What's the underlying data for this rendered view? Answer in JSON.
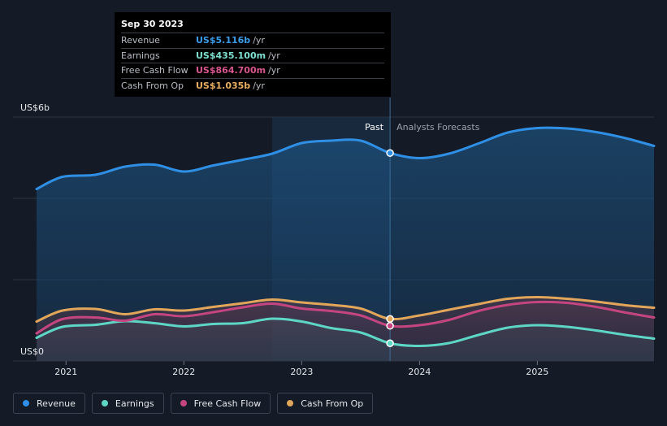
{
  "tooltip": {
    "date": "Sep 30 2023",
    "rows": [
      {
        "label": "Revenue",
        "value": "US$5.116b",
        "unit": "/yr",
        "color": "#3b9cea"
      },
      {
        "label": "Earnings",
        "value": "US$435.100m",
        "unit": "/yr",
        "color": "#7ee0d0"
      },
      {
        "label": "Free Cash Flow",
        "value": "US$864.700m",
        "unit": "/yr",
        "color": "#d9558e"
      },
      {
        "label": "Cash From Op",
        "value": "US$1.035b",
        "unit": "/yr",
        "color": "#eaae61"
      }
    ]
  },
  "legend": [
    {
      "label": "Revenue",
      "color": "#2f8fe5"
    },
    {
      "label": "Earnings",
      "color": "#5ed6c6"
    },
    {
      "label": "Free Cash Flow",
      "color": "#c4457f"
    },
    {
      "label": "Cash From Op",
      "color": "#e2a65a"
    }
  ],
  "chart_data": {
    "type": "line",
    "ylabel_top": "US$6b",
    "ylabel_bottom": "US$0",
    "ylim": [
      0,
      6
    ],
    "x_ticks": [
      "2021",
      "2022",
      "2023",
      "2024",
      "2025"
    ],
    "x_tick_values": [
      2021.0,
      2022.0,
      2023.0,
      2024.0,
      2025.0
    ],
    "xlim": [
      2020.55,
      2025.99
    ],
    "past_label": "Past",
    "forecast_label": "Analysts Forecasts",
    "divider_x": 2023.75,
    "highlight_start_x": 2022.75,
    "series": [
      {
        "name": "Revenue",
        "color": "#2f8fe5",
        "x": [
          2020.75,
          2020.97,
          2021.25,
          2021.5,
          2021.75,
          2022.0,
          2022.25,
          2022.5,
          2022.75,
          2023.0,
          2023.25,
          2023.5,
          2023.75,
          2024.0,
          2024.25,
          2024.5,
          2024.75,
          2025.0,
          2025.25,
          2025.5,
          2025.75,
          2025.99
        ],
        "values": [
          4.23,
          4.53,
          4.58,
          4.78,
          4.83,
          4.66,
          4.81,
          4.95,
          5.1,
          5.36,
          5.42,
          5.42,
          5.116,
          4.99,
          5.1,
          5.35,
          5.62,
          5.73,
          5.72,
          5.63,
          5.48,
          5.29
        ]
      },
      {
        "name": "Earnings",
        "color": "#5ed6c6",
        "x": [
          2020.75,
          2020.97,
          2021.25,
          2021.5,
          2021.75,
          2022.0,
          2022.25,
          2022.5,
          2022.75,
          2023.0,
          2023.25,
          2023.5,
          2023.75,
          2024.0,
          2024.25,
          2024.5,
          2024.75,
          2025.0,
          2025.25,
          2025.5,
          2025.75,
          2025.99
        ],
        "values": [
          0.57,
          0.84,
          0.89,
          0.98,
          0.93,
          0.85,
          0.91,
          0.93,
          1.04,
          0.97,
          0.81,
          0.7,
          0.4351,
          0.37,
          0.44,
          0.64,
          0.82,
          0.88,
          0.84,
          0.75,
          0.64,
          0.55
        ]
      },
      {
        "name": "Free Cash Flow",
        "color": "#c4457f",
        "x": [
          2020.75,
          2020.97,
          2021.25,
          2021.5,
          2021.75,
          2022.0,
          2022.25,
          2022.5,
          2022.75,
          2023.0,
          2023.25,
          2023.5,
          2023.75,
          2024.0,
          2024.25,
          2024.5,
          2024.75,
          2025.0,
          2025.25,
          2025.5,
          2025.75,
          2025.99
        ],
        "values": [
          0.68,
          1.03,
          1.07,
          0.99,
          1.15,
          1.1,
          1.2,
          1.32,
          1.41,
          1.29,
          1.23,
          1.12,
          0.8647,
          0.88,
          1.01,
          1.23,
          1.38,
          1.45,
          1.43,
          1.33,
          1.19,
          1.07
        ]
      },
      {
        "name": "Cash From Op",
        "color": "#e2a65a",
        "x": [
          2020.75,
          2020.97,
          2021.25,
          2021.5,
          2021.75,
          2022.0,
          2022.25,
          2022.5,
          2022.75,
          2023.0,
          2023.25,
          2023.5,
          2023.75,
          2024.0,
          2024.25,
          2024.5,
          2024.75,
          2025.0,
          2025.25,
          2025.5,
          2025.75,
          2025.99
        ],
        "values": [
          0.97,
          1.24,
          1.28,
          1.15,
          1.27,
          1.24,
          1.33,
          1.42,
          1.51,
          1.44,
          1.38,
          1.29,
          1.035,
          1.12,
          1.26,
          1.4,
          1.53,
          1.57,
          1.53,
          1.46,
          1.37,
          1.31
        ]
      }
    ]
  }
}
